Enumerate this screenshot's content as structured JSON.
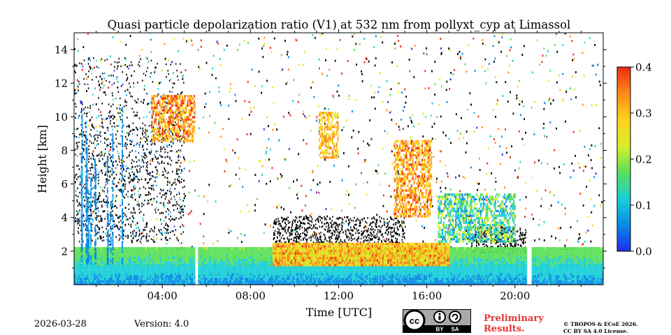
{
  "chart_data": {
    "type": "heatmap",
    "title": "Quasi particle depolarization ratio (V1) at 532 nm from pollyxt_cyp at Limassol",
    "xlabel": "Time [UTC]",
    "ylabel": "Height [km]",
    "xlim_hours": [
      0,
      24
    ],
    "ylim_km": [
      0,
      15
    ],
    "x_ticks": [
      "04:00",
      "08:00",
      "12:00",
      "16:00",
      "20:00"
    ],
    "x_tick_hours": [
      4,
      8,
      12,
      16,
      20
    ],
    "y_ticks": [
      "2",
      "4",
      "6",
      "8",
      "10",
      "12",
      "14"
    ],
    "y_tick_values": [
      2,
      4,
      6,
      8,
      10,
      12,
      14
    ],
    "colorbar": {
      "range": [
        0.0,
        0.4
      ],
      "ticks": [
        "0.0",
        "0.1",
        "0.2",
        "0.3",
        "0.4"
      ],
      "tick_values": [
        0.0,
        0.1,
        0.2,
        0.3,
        0.4
      ],
      "colormap": [
        "#1c2ef0",
        "#0a8ae6",
        "#19cfd8",
        "#5ce05a",
        "#d9ee2a",
        "#ffd21c",
        "#ff8a1a",
        "#ee2a10"
      ]
    },
    "features": [
      {
        "name": "boundary layer",
        "t_start": 0,
        "t_end": 24,
        "h_base": 0,
        "h_top": 2.2,
        "value": 0.07
      },
      {
        "name": "dust layer",
        "t_start": 9,
        "t_end": 17,
        "h_base": 1.1,
        "h_top": 2.4,
        "value": 0.3
      },
      {
        "name": "cirrus",
        "t_start": 3.5,
        "t_end": 5.5,
        "h_base": 8.5,
        "h_top": 11.2,
        "value": 0.33
      },
      {
        "name": "cirrus",
        "t_start": 11.1,
        "t_end": 12,
        "h_base": 7.5,
        "h_top": 10.3,
        "value": 0.3
      },
      {
        "name": "cirrus",
        "t_start": 14.5,
        "t_end": 16.2,
        "h_base": 4,
        "h_top": 8.5,
        "value": 0.32
      },
      {
        "name": "aerosol layer",
        "t_start": 16.5,
        "t_end": 20,
        "h_base": 2.5,
        "h_top": 5.3,
        "value": 0.15
      }
    ],
    "data_gaps_hours": [
      [
        5.5,
        5.62
      ],
      [
        20.55,
        20.75
      ]
    ]
  },
  "footer": {
    "date": "2026-03-28",
    "version": "Version: 4.0",
    "license_badge": [
      "BY",
      "SA"
    ],
    "preliminary": [
      "Preliminary",
      "Results."
    ],
    "copyright": [
      "© TROPOS & ECoE 2026.",
      "CC BY SA 4.0 License."
    ]
  }
}
